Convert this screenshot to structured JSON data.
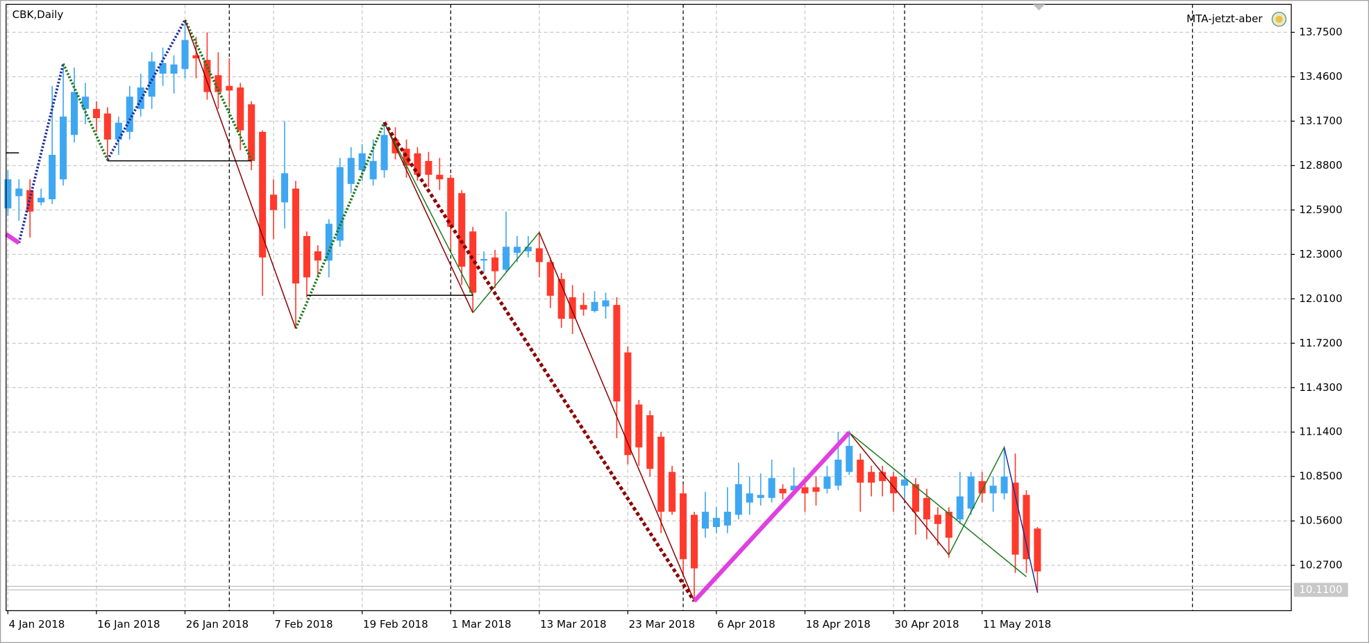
{
  "chart_data": {
    "type": "candlestick",
    "title": "CBK,Daily",
    "indicator": "MTA-jetzt-aber",
    "categories": [
      "4 Jan 2018",
      null,
      null,
      null,
      null,
      null,
      null,
      null,
      "16 Jan 2018",
      null,
      null,
      null,
      null,
      null,
      null,
      null,
      "26 Jan 2018",
      null,
      null,
      null,
      null,
      null,
      null,
      null,
      "7 Feb 2018",
      null,
      null,
      null,
      null,
      null,
      null,
      null,
      "19 Feb 2018",
      null,
      null,
      null,
      null,
      null,
      null,
      null,
      "1 Mar 2018",
      null,
      null,
      null,
      null,
      null,
      null,
      null,
      "13 Mar 2018",
      null,
      null,
      null,
      null,
      null,
      null,
      null,
      "23 Mar 2018",
      null,
      null,
      null,
      null,
      null,
      null,
      null,
      "6 Apr 2018",
      null,
      null,
      null,
      null,
      null,
      null,
      null,
      "18 Apr 2018",
      null,
      null,
      null,
      null,
      null,
      null,
      null,
      "30 Apr 2018",
      null,
      null,
      null,
      null,
      null,
      null,
      null,
      "11 May 2018",
      null,
      null,
      null,
      null,
      null
    ],
    "open": [
      12.6,
      12.68,
      12.72,
      12.64,
      12.66,
      12.79,
      13.08,
      13.25,
      13.25,
      13.22,
      13.05,
      13.1,
      13.25,
      13.33,
      13.48,
      13.48,
      13.51,
      13.6,
      13.57,
      13.47,
      13.4,
      13.39,
      13.28,
      13.1,
      12.69,
      12.64,
      12.73,
      12.42,
      12.32,
      12.26,
      12.39,
      12.76,
      12.85,
      12.79,
      12.85,
      13.05,
      12.99,
      12.96,
      12.91,
      12.82,
      12.8,
      12.7,
      12.45,
      12.26,
      12.28,
      12.2,
      12.31,
      12.32,
      12.34,
      12.25,
      12.14,
      12.02,
      11.97,
      11.93,
      11.96,
      11.97,
      11.66,
      11.32,
      11.25,
      11.11,
      10.88,
      10.74,
      10.6,
      10.51,
      10.52,
      10.53,
      10.6,
      10.68,
      10.71,
      10.71,
      10.77,
      10.76,
      10.78,
      10.78,
      10.77,
      10.79,
      10.88,
      10.96,
      10.88,
      10.88,
      10.85,
      10.79,
      10.8,
      10.71,
      10.6,
      10.62,
      10.57,
      10.64,
      10.82,
      10.74,
      10.74,
      10.81,
      10.73,
      10.51
    ],
    "high": [
      12.85,
      12.79,
      12.79,
      12.73,
      13.4,
      13.52,
      13.52,
      13.42,
      13.3,
      13.26,
      13.2,
      13.4,
      13.48,
      13.62,
      13.65,
      13.6,
      13.83,
      13.72,
      13.75,
      13.62,
      13.58,
      13.42,
      13.3,
      13.11,
      12.79,
      13.17,
      12.78,
      12.45,
      12.36,
      12.53,
      12.93,
      13.0,
      13.02,
      13.05,
      13.16,
      13.13,
      13.05,
      13.0,
      12.97,
      12.93,
      12.82,
      12.72,
      12.48,
      12.32,
      12.33,
      12.58,
      12.42,
      12.42,
      12.45,
      12.28,
      12.18,
      12.1,
      12.05,
      12.06,
      12.05,
      12.02,
      11.7,
      11.35,
      11.28,
      11.14,
      10.92,
      10.8,
      10.62,
      10.75,
      10.65,
      10.78,
      10.94,
      10.85,
      10.87,
      10.96,
      10.8,
      10.91,
      10.85,
      10.85,
      10.92,
      11.14,
      11.15,
      11.0,
      10.92,
      10.92,
      10.88,
      10.88,
      10.84,
      10.77,
      10.65,
      10.65,
      10.88,
      10.88,
      10.88,
      10.85,
      11.05,
      11.0,
      10.76,
      10.52
    ],
    "low": [
      12.55,
      12.52,
      12.41,
      12.62,
      12.63,
      12.75,
      13.03,
      13.15,
      13.1,
      12.91,
      12.95,
      13.05,
      13.2,
      13.25,
      13.4,
      13.35,
      13.45,
      13.45,
      13.31,
      13.25,
      13.26,
      12.98,
      12.85,
      12.03,
      12.4,
      12.47,
      11.82,
      12.02,
      12.15,
      12.15,
      12.35,
      12.7,
      12.78,
      12.75,
      12.8,
      12.92,
      12.8,
      12.78,
      12.74,
      12.72,
      12.33,
      12.1,
      11.92,
      12.18,
      12.08,
      12.18,
      12.25,
      12.28,
      12.15,
      11.95,
      11.82,
      11.78,
      11.9,
      11.92,
      11.88,
      11.1,
      10.93,
      10.92,
      10.85,
      10.48,
      10.6,
      10.22,
      10.04,
      10.45,
      10.48,
      10.48,
      10.57,
      10.6,
      10.66,
      10.68,
      10.7,
      10.73,
      10.62,
      10.66,
      10.74,
      10.76,
      10.86,
      10.62,
      10.72,
      10.72,
      10.62,
      10.7,
      10.47,
      10.44,
      10.4,
      10.32,
      10.54,
      10.6,
      10.68,
      10.62,
      10.7,
      10.22,
      10.22,
      10.09
    ],
    "close": [
      12.79,
      12.73,
      12.58,
      12.67,
      12.95,
      13.2,
      13.36,
      13.33,
      13.19,
      13.05,
      13.16,
      13.33,
      13.39,
      13.56,
      13.55,
      13.54,
      13.7,
      13.58,
      13.36,
      13.36,
      13.37,
      13.11,
      12.91,
      12.28,
      12.59,
      12.83,
      12.11,
      12.15,
      12.26,
      12.5,
      12.87,
      12.93,
      12.96,
      12.91,
      13.08,
      12.96,
      12.88,
      12.82,
      12.82,
      12.79,
      12.48,
      12.22,
      12.05,
      12.27,
      12.19,
      12.35,
      12.35,
      12.35,
      12.25,
      12.03,
      11.88,
      11.88,
      11.94,
      11.99,
      12.0,
      11.34,
      10.99,
      11.04,
      10.9,
      10.62,
      10.62,
      10.31,
      10.25,
      10.62,
      10.58,
      10.62,
      10.8,
      10.74,
      10.73,
      10.84,
      10.74,
      10.79,
      10.74,
      10.75,
      10.85,
      10.96,
      11.05,
      10.81,
      10.81,
      10.82,
      10.74,
      10.83,
      10.62,
      10.57,
      10.54,
      10.45,
      10.72,
      10.85,
      10.74,
      10.79,
      10.85,
      10.34,
      10.31,
      10.23
    ],
    "up_color": "#3fa7f2",
    "down_color": "#ff3a2c",
    "overlays": [
      {
        "color": "#1c2f9b",
        "style": "dots",
        "segments": [
          [
            [
              1,
              12.375
            ],
            [
              5,
              13.545
            ]
          ],
          [
            [
              9,
              12.917
            ],
            [
              16,
              13.83
            ]
          ]
        ]
      },
      {
        "color": "#1b7a1b",
        "style": "dots",
        "segments": [
          [
            [
              5,
              13.545
            ],
            [
              9,
              12.917
            ]
          ],
          [
            [
              16,
              13.83
            ],
            [
              22,
              12.917
            ]
          ],
          [
            [
              26,
              11.816
            ],
            [
              34,
              13.162
            ]
          ]
        ]
      },
      {
        "color": "#8b0000",
        "style": "solid",
        "segments": [
          [
            [
              16,
              13.83
            ],
            [
              26,
              11.816
            ]
          ],
          [
            [
              34,
              13.162
            ],
            [
              42,
              11.919
            ]
          ],
          [
            [
              48,
              12.444
            ],
            [
              62,
              10.036
            ]
          ],
          [
            [
              76,
              11.137
            ],
            [
              85,
              10.339
            ]
          ]
        ]
      },
      {
        "color": "#1b7a1b",
        "style": "solid",
        "segments": [
          [
            [
              34,
              13.162
            ],
            [
              42,
              12.033
            ]
          ],
          [
            [
              42,
              11.919
            ],
            [
              48,
              12.444
            ]
          ],
          [
            [
              76,
              11.137
            ],
            [
              92,
              10.196
            ]
          ],
          [
            [
              85,
              10.339
            ],
            [
              90,
              11.04
            ]
          ]
        ]
      },
      {
        "color": "#8b0000",
        "style": "dashes",
        "segments": [
          [
            [
              34,
              13.162
            ],
            [
              62,
              10.036
            ]
          ]
        ]
      },
      {
        "color": "#e040e0",
        "style": "bold",
        "segments": [
          [
            [
              -0.16,
              12.432
            ],
            [
              1,
              12.375
            ]
          ],
          [
            [
              62,
              10.036
            ],
            [
              76,
              11.137
            ]
          ]
        ]
      },
      {
        "color": "#1c2f9b",
        "style": "solid",
        "segments": [
          [
            [
              90,
              11.04
            ],
            [
              93,
              10.093
            ]
          ]
        ]
      },
      {
        "color": "#000000",
        "style": "solid",
        "segments": [
          [
            [
              9,
              12.911
            ],
            [
              22,
              12.911
            ]
          ],
          [
            [
              27,
              12.033
            ],
            [
              42,
              12.033
            ]
          ],
          [
            [
              -0.16,
              12.963
            ],
            [
              1,
              12.963
            ]
          ]
        ]
      }
    ],
    "separators": [
      20,
      40,
      61,
      81,
      107
    ],
    "current_price": {
      "value": 10.11,
      "label": "10.1100"
    },
    "xlim": [
      -0.16,
      115.93
    ],
    "ylim": [
      9.974,
      13.9325
    ],
    "yticks": [
      {
        "value": 13.75,
        "label": "13.7500"
      },
      {
        "value": 13.46,
        "label": "13.4600"
      },
      {
        "value": 13.17,
        "label": "13.1700"
      },
      {
        "value": 12.88,
        "label": "12.8800"
      },
      {
        "value": 12.59,
        "label": "12.5900"
      },
      {
        "value": 12.3,
        "label": "12.3000"
      },
      {
        "value": 12.01,
        "label": "12.0100"
      },
      {
        "value": 11.72,
        "label": "11.7200"
      },
      {
        "value": 11.43,
        "label": "11.4300"
      },
      {
        "value": 11.14,
        "label": "11.1400"
      },
      {
        "value": 10.85,
        "label": "10.8500"
      },
      {
        "value": 10.56,
        "label": "10.5600"
      },
      {
        "value": 10.27,
        "label": "10.2700"
      }
    ],
    "grid": true
  }
}
